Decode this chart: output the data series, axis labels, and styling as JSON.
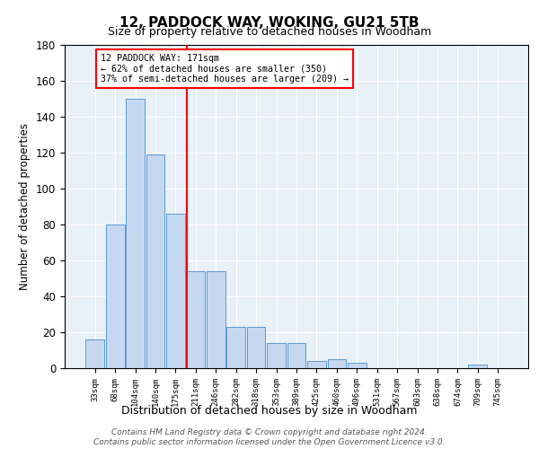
{
  "title": "12, PADDOCK WAY, WOKING, GU21 5TB",
  "subtitle": "Size of property relative to detached houses in Woodham",
  "xlabel": "Distribution of detached houses by size in Woodham",
  "ylabel": "Number of detached properties",
  "bar_labels": [
    "33sqm",
    "68sqm",
    "104sqm",
    "140sqm",
    "175sqm",
    "211sqm",
    "246sqm",
    "282sqm",
    "318sqm",
    "353sqm",
    "389sqm",
    "425sqm",
    "460sqm",
    "496sqm",
    "531sqm",
    "567sqm",
    "603sqm",
    "638sqm",
    "674sqm",
    "709sqm",
    "745sqm"
  ],
  "bar_heights": [
    16,
    80,
    150,
    119,
    86,
    54,
    54,
    23,
    23,
    14,
    14,
    4,
    5,
    3,
    0,
    0,
    0,
    0,
    0,
    2,
    0
  ],
  "bar_color": "#c5d8f0",
  "bar_edge_color": "#5b9bd5",
  "vline_x": 4.57,
  "vline_color": "red",
  "annotation_line1": "12 PADDOCK WAY: 171sqm",
  "annotation_line2": "← 62% of detached houses are smaller (350)",
  "annotation_line3": "37% of semi-detached houses are larger (209) →",
  "annotation_box_color": "white",
  "annotation_box_edge": "red",
  "ylim": [
    0,
    180
  ],
  "yticks": [
    0,
    20,
    40,
    60,
    80,
    100,
    120,
    140,
    160,
    180
  ],
  "background_color": "#e8f0f8",
  "footer_line1": "Contains HM Land Registry data © Crown copyright and database right 2024.",
  "footer_line2": "Contains public sector information licensed under the Open Government Licence v3.0."
}
